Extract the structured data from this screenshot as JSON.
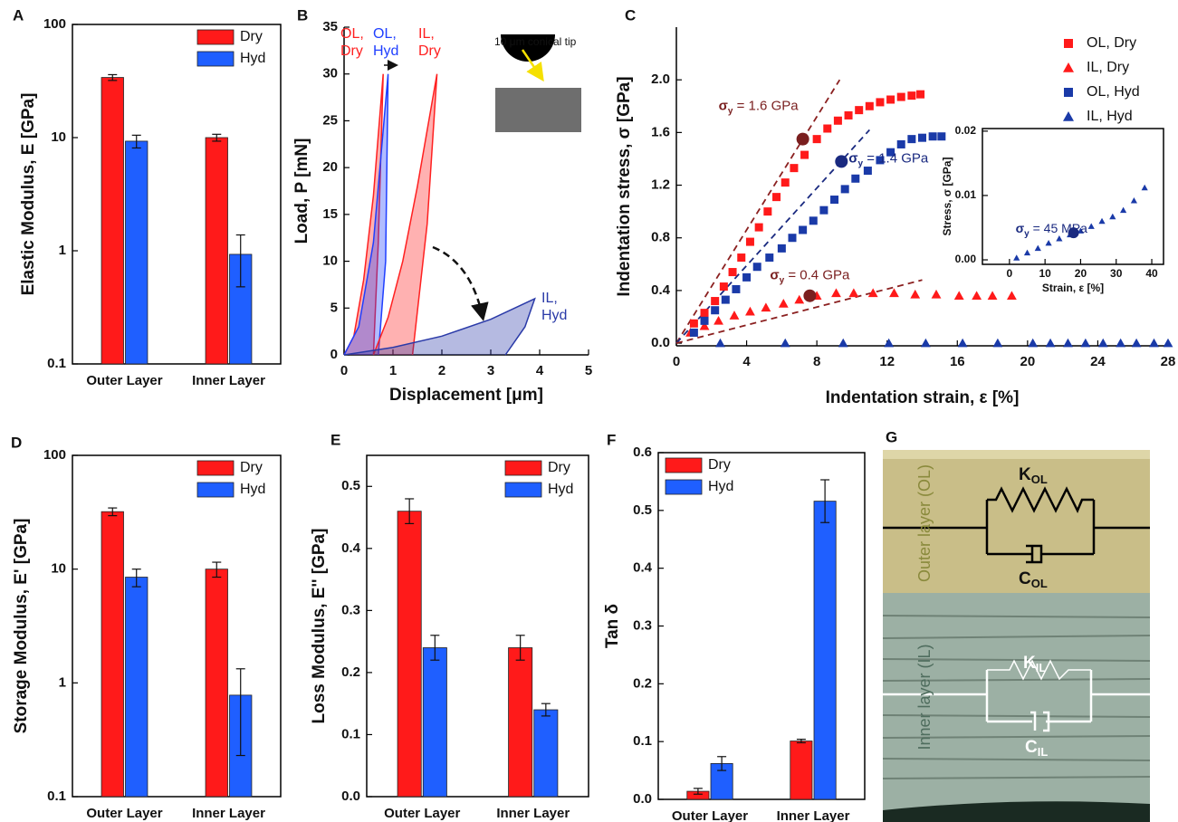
{
  "chart_data": [
    {
      "type": "bar",
      "panel": "A",
      "ylabel": "Elastic Modulus, E [GPa]",
      "log": true,
      "categories": [
        "Outer Layer",
        "Inner Layer"
      ],
      "series": [
        {
          "name": "Dry",
          "color": "#ff1a1a",
          "values": [
            34,
            10
          ],
          "errors": [
            2,
            0.7
          ]
        },
        {
          "name": "Hyd",
          "color": "#1f5fff",
          "values": [
            9.3,
            0.93
          ],
          "errors": [
            1.2,
            0.45
          ]
        }
      ],
      "ylim": [
        0.1,
        100
      ],
      "yticks": [
        0.1,
        1,
        10,
        100
      ],
      "legend": "upper right",
      "frame": "box"
    },
    {
      "type": "line",
      "panel": "B",
      "xlabel": "Displacement [μm]",
      "ylabel": "Load, P [mN]",
      "series": [
        {
          "color": "#ff2020",
          "x": [
            0,
            0.2,
            0.4,
            0.6,
            0.8,
            0.7,
            0.6
          ],
          "values": [
            0,
            2,
            8,
            17,
            30,
            12,
            0
          ]
        },
        {
          "color": "#1f3fff",
          "x": [
            0,
            0.3,
            0.6,
            0.9,
            0.85,
            0.7
          ],
          "values": [
            0,
            3,
            12,
            30,
            10,
            0
          ]
        },
        {
          "color": "#ff2020",
          "x": [
            0.6,
            0.9,
            1.2,
            1.5,
            1.9,
            1.7,
            1.4
          ],
          "values": [
            0,
            4,
            10,
            18,
            30,
            14,
            0
          ]
        },
        {
          "color": "#2a3aa8",
          "x": [
            0,
            1,
            2,
            3,
            3.9,
            3.7,
            3.3
          ],
          "values": [
            0,
            0.8,
            2,
            3.8,
            6,
            3,
            0
          ]
        }
      ],
      "annotations": [
        {
          "lines": [
            "OL,",
            "Dry"
          ],
          "color": "#ff2020"
        },
        {
          "lines": [
            "OL,",
            "Hyd"
          ],
          "color": "#1f3fff"
        },
        {
          "lines": [
            "IL,",
            "Dry"
          ],
          "color": "#ff2020"
        },
        {
          "lines": [
            "IL,",
            "Hyd"
          ],
          "color": "#2a3aa8"
        },
        {
          "lines": [
            "10 μm conical tip"
          ],
          "color": "#111111"
        }
      ],
      "xlim": [
        0,
        5
      ],
      "xticks": [
        0,
        1,
        2,
        3,
        4,
        5
      ],
      "ylim": [
        0,
        35
      ],
      "yticks": [
        0,
        5,
        10,
        15,
        20,
        25,
        30,
        35
      ],
      "frame": "open"
    },
    {
      "type": "scatter",
      "panel": "C",
      "xlabel": "Indentation strain, ε [%]",
      "ylabel": "Indentation stress, σ [GPa]",
      "series": [
        {
          "name": "OL, Dry",
          "color": "#ff1a1a",
          "marker": "square",
          "x": [
            1,
            1.6,
            2.2,
            2.7,
            3.2,
            3.7,
            4.2,
            4.7,
            5.2,
            5.7,
            6.2,
            6.7,
            7.3,
            8,
            8.6,
            9.2,
            9.8,
            10.4,
            11,
            11.6,
            12.2,
            12.8,
            13.4,
            13.9
          ],
          "values": [
            0.15,
            0.23,
            0.32,
            0.43,
            0.54,
            0.65,
            0.77,
            0.88,
            1.0,
            1.11,
            1.22,
            1.33,
            1.43,
            1.55,
            1.63,
            1.69,
            1.73,
            1.77,
            1.8,
            1.83,
            1.85,
            1.87,
            1.88,
            1.89
          ]
        },
        {
          "name": "IL, Dry",
          "color": "#ff1a1a",
          "marker": "triangle",
          "x": [
            0.8,
            1.6,
            2.4,
            3.3,
            4.2,
            5.1,
            6.1,
            7,
            8,
            9.1,
            10.1,
            11.2,
            12.4,
            13.6,
            14.8,
            16.1,
            17.1,
            18,
            19.1
          ],
          "values": [
            0.08,
            0.13,
            0.17,
            0.21,
            0.24,
            0.27,
            0.3,
            0.33,
            0.36,
            0.38,
            0.38,
            0.38,
            0.38,
            0.37,
            0.37,
            0.36,
            0.36,
            0.36,
            0.36
          ]
        },
        {
          "name": "OL, Hyd",
          "color": "#1a3aa8",
          "marker": "square",
          "x": [
            1,
            1.6,
            2.2,
            2.8,
            3.4,
            4,
            4.6,
            5.3,
            6,
            6.6,
            7.2,
            7.8,
            8.4,
            9,
            9.6,
            10.2,
            10.9,
            11.6,
            12.2,
            12.8,
            13.4,
            14,
            14.6,
            15.1
          ],
          "values": [
            0.08,
            0.17,
            0.25,
            0.33,
            0.41,
            0.5,
            0.58,
            0.65,
            0.72,
            0.8,
            0.86,
            0.93,
            1.01,
            1.09,
            1.17,
            1.25,
            1.31,
            1.39,
            1.45,
            1.51,
            1.55,
            1.56,
            1.57,
            1.57
          ]
        },
        {
          "name": "IL, Hyd",
          "color": "#1a3aa8",
          "marker": "triangle",
          "x": [
            2.5,
            6.2,
            9.5,
            12.1,
            14.2,
            16.3,
            18.3,
            20.3,
            21.3,
            22.3,
            23.3,
            24.3,
            25.3,
            26.2,
            27.2,
            28
          ],
          "values": [
            0,
            0,
            0,
            0,
            0,
            0,
            0,
            0,
            0,
            0,
            0,
            0,
            0,
            0,
            0,
            0
          ]
        }
      ],
      "fits": [
        {
          "color": "#8b2020",
          "x": [
            0,
            9.3
          ],
          "values": [
            0,
            2.0
          ]
        },
        {
          "color": "#1a2a80",
          "x": [
            0,
            11
          ],
          "values": [
            0,
            1.62
          ]
        },
        {
          "color": "#8b2020",
          "x": [
            0,
            14
          ],
          "values": [
            0,
            0.48
          ]
        }
      ],
      "annotations": [
        {
          "x": 7.2,
          "y": 1.55,
          "color": "#7a1f1f",
          "symbol": "σ",
          "subscript": "y",
          "text": " = 1.6 GPa"
        },
        {
          "x": 9.4,
          "y": 1.38,
          "color": "#1a2a80",
          "symbol": "σ",
          "subscript": "y",
          "text": " = 1.4 GPa"
        },
        {
          "x": 7.6,
          "y": 0.36,
          "color": "#7a1f1f",
          "symbol": "σ",
          "subscript": "y",
          "text": " = 0.4 GPa"
        }
      ],
      "xlim": [
        0,
        28
      ],
      "xticks": [
        0,
        4,
        8,
        12,
        16,
        20,
        24,
        28
      ],
      "ylim": [
        -0.02,
        2.4
      ],
      "yticks": [
        {
          "value": 0,
          "label": "0.0"
        },
        0.4,
        0.8,
        1.2,
        1.6,
        {
          "value": 2,
          "label": "2.0"
        }
      ],
      "legend": "upper right",
      "frame": "open",
      "inset": {
        "type": "scatter",
        "xlabel": "Strain, ε [%]",
        "ylabel": "Stress, σ [GPa]",
        "series": [
          {
            "color": "#1a3aa8",
            "marker": "triangle",
            "x": [
              2,
              5,
              8,
              11,
              14,
              17,
              20,
              23,
              26,
              29,
              32,
              35,
              38
            ],
            "values": [
              0.0003,
              0.0011,
              0.0018,
              0.0026,
              0.0033,
              0.0039,
              0.0045,
              0.0052,
              0.006,
              0.0067,
              0.0077,
              0.0092,
              0.0112
            ]
          }
        ],
        "annotations": [
          {
            "x": 18,
            "y": 0.0042,
            "color": "#1a2a80",
            "symbol": "σ",
            "subscript": "y",
            "text": " = 45 MPa"
          }
        ],
        "xlim": [
          -7.6,
          43.3
        ],
        "xticks": [
          0,
          10,
          20,
          30,
          40
        ],
        "ylim": [
          -0.0007,
          0.0204
        ],
        "yticks": [
          {
            "value": 0,
            "label": "0.00"
          },
          {
            "value": 0.01,
            "label": "0.01"
          },
          {
            "value": 0.02,
            "label": "0.02"
          }
        ],
        "frame": "box"
      }
    },
    {
      "type": "bar",
      "panel": "D",
      "ylabel": "Storage Modulus, E' [GPa]",
      "log": true,
      "categories": [
        "Outer Layer",
        "Inner Layer"
      ],
      "series": [
        {
          "name": "Dry",
          "color": "#ff1a1a",
          "values": [
            32,
            10
          ],
          "errors": [
            2.5,
            1.5
          ]
        },
        {
          "name": "Hyd",
          "color": "#1f5fff",
          "values": [
            8.5,
            0.78
          ],
          "errors": [
            1.5,
            0.55
          ]
        }
      ],
      "ylim": [
        0.1,
        100
      ],
      "yticks": [
        0.1,
        1,
        10,
        100
      ],
      "legend": "upper right",
      "frame": "box"
    },
    {
      "type": "bar",
      "panel": "E",
      "ylabel": "Loss Modulus, E'' [GPa]",
      "categories": [
        "Outer Layer",
        "Inner Layer"
      ],
      "series": [
        {
          "name": "Dry",
          "color": "#ff1a1a",
          "values": [
            0.46,
            0.24
          ],
          "errors": [
            0.02,
            0.02
          ]
        },
        {
          "name": "Hyd",
          "color": "#1f5fff",
          "values": [
            0.24,
            0.14
          ],
          "errors": [
            0.02,
            0.01
          ]
        }
      ],
      "ylim": [
        0,
        0.55
      ],
      "yticks": [
        {
          "value": 0,
          "label": "0.0"
        },
        0.1,
        0.2,
        0.3,
        0.4,
        0.5
      ],
      "legend": "upper right",
      "frame": "box"
    },
    {
      "type": "bar",
      "panel": "F",
      "ylabel": "Tan δ",
      "categories": [
        "Outer Layer",
        "Inner Layer"
      ],
      "series": [
        {
          "name": "Dry",
          "color": "#ff1a1a",
          "values": [
            0.014,
            0.101
          ],
          "errors": [
            0.005,
            0.003
          ]
        },
        {
          "name": "Hyd",
          "color": "#1f5fff",
          "values": [
            0.062,
            0.516
          ],
          "errors": [
            0.012,
            0.037
          ]
        }
      ],
      "ylim": [
        0,
        0.6
      ],
      "yticks": [
        {
          "value": 0,
          "label": "0.0"
        },
        0.1,
        0.2,
        0.3,
        0.4,
        0.5,
        0.6
      ],
      "legend": "upper left",
      "frame": "box"
    }
  ],
  "diagram": {
    "panel": "G",
    "outer_label": "Outer layer (OL)",
    "inner_label": "Inner layer (IL)",
    "k_ol": {
      "base": "K",
      "sub": "OL"
    },
    "c_ol": {
      "base": "C",
      "sub": "OL"
    },
    "k_il": {
      "base": "K",
      "sub": "IL"
    },
    "c_il": {
      "base": "C",
      "sub": "IL"
    }
  }
}
